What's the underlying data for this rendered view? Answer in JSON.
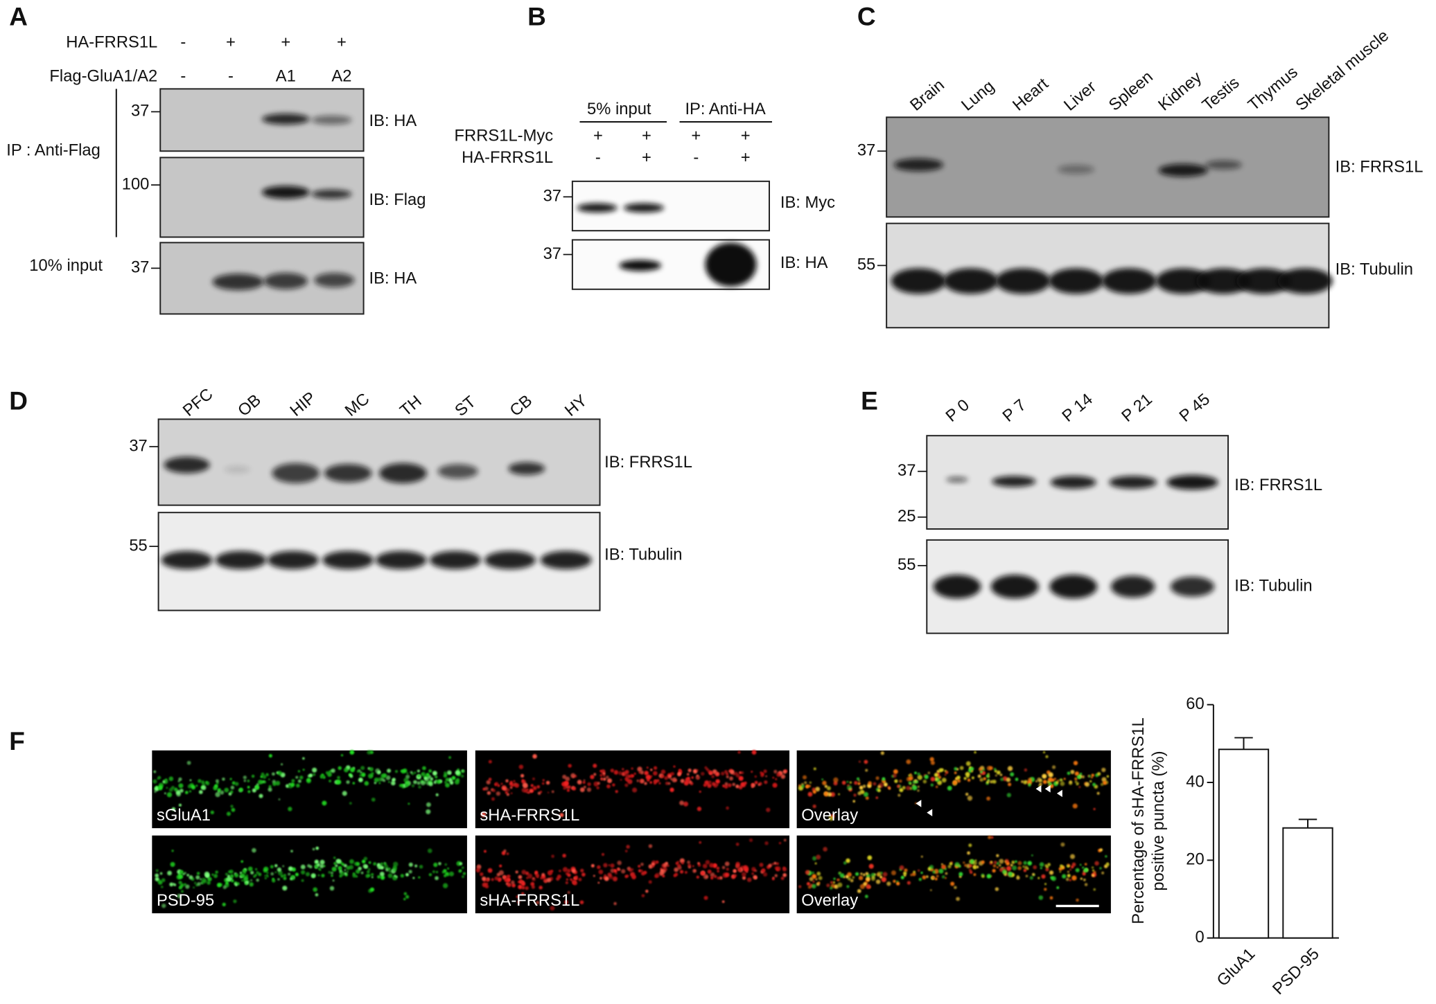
{
  "panels": {
    "A": {
      "label": "A",
      "rows": [
        {
          "name": "HA-FRRS1L",
          "cells": [
            "-",
            "+",
            "+",
            "+"
          ]
        },
        {
          "name": "Flag-GluA1/A2",
          "cells": [
            "-",
            "-",
            "A1",
            "A2"
          ]
        }
      ],
      "ip": "IP : Anti-Flag",
      "input": "10% input",
      "markers": [
        37,
        100,
        37
      ],
      "ib": [
        "IB: HA",
        "IB: Flag",
        "IB: HA"
      ]
    },
    "B": {
      "label": "B",
      "groups": [
        "5% input",
        "IP: Anti-HA"
      ],
      "rows": [
        {
          "name": "FRRS1L-Myc",
          "cells": [
            "+",
            "+",
            "+",
            "+"
          ]
        },
        {
          "name": "HA-FRRS1L",
          "cells": [
            "-",
            "+",
            "-",
            "+"
          ]
        }
      ],
      "markers": [
        37,
        37
      ],
      "ib": [
        "IB: Myc",
        "IB: HA"
      ]
    },
    "C": {
      "label": "C",
      "lanes": [
        "Brain",
        "Lung",
        "Heart",
        "Liver",
        "Spleen",
        "Kidney",
        "Testis",
        "Thymus",
        "Skeletal muscle"
      ],
      "markers": [
        37,
        55
      ],
      "ib": [
        "IB: FRRS1L",
        "IB: Tubulin"
      ]
    },
    "D": {
      "label": "D",
      "lanes": [
        "PFC",
        "OB",
        "HIP",
        "MC",
        "TH",
        "ST",
        "CB",
        "HY"
      ],
      "markers": [
        37,
        55
      ],
      "ib": [
        "IB: FRRS1L",
        "IB: Tubulin"
      ]
    },
    "E": {
      "label": "E",
      "lanes": [
        "P 0",
        "P 7",
        "P 14",
        "P 21",
        "P 45"
      ],
      "markers": [
        37,
        25,
        55
      ],
      "ib": [
        "IB: FRRS1L",
        "IB: Tubulin"
      ]
    },
    "F": {
      "label": "F",
      "images": [
        [
          "sGluA1",
          "sHA-FRRS1L",
          "Overlay"
        ],
        [
          "PSD-95",
          "sHA-FRRS1L",
          "Overlay"
        ]
      ]
    }
  },
  "chart_data": {
    "type": "bar",
    "ylabel": [
      "Percentage of sHA-FRRS1L",
      "positive puncta (%)"
    ],
    "categories": [
      "GluA1",
      "PSD-95"
    ],
    "values": [
      48.5,
      28.3
    ],
    "errors": [
      3,
      2.2
    ],
    "color": "#ffffff",
    "ylim": [
      0,
      60
    ],
    "yticks": [
      0,
      20,
      40,
      60
    ]
  }
}
